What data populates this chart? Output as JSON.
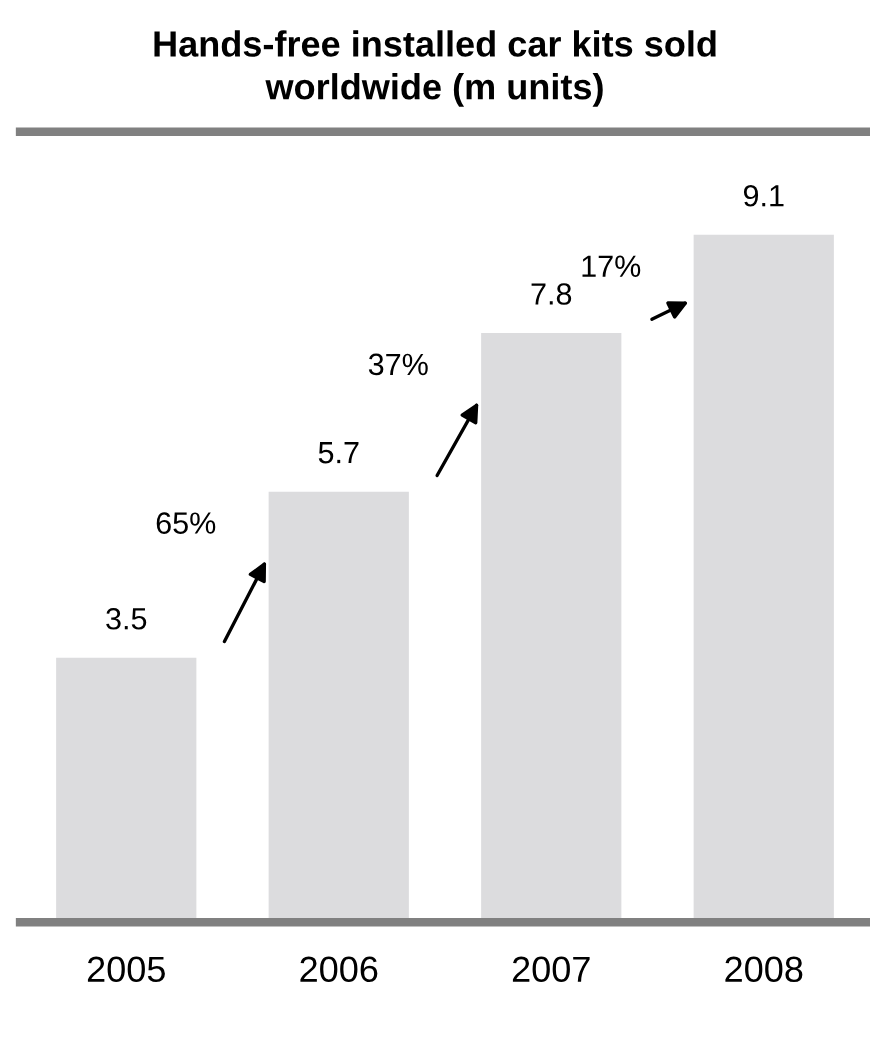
{
  "chart_data": {
    "type": "bar",
    "title": "Hands-free installed car kits sold\nworldwide (m units)",
    "categories": [
      "2005",
      "2006",
      "2007",
      "2008"
    ],
    "values": [
      3.5,
      5.7,
      7.8,
      9.1
    ],
    "color": "#dcdcde",
    "data_labels": true,
    "annotations": [
      "65%",
      "37%",
      "17%"
    ]
  }
}
